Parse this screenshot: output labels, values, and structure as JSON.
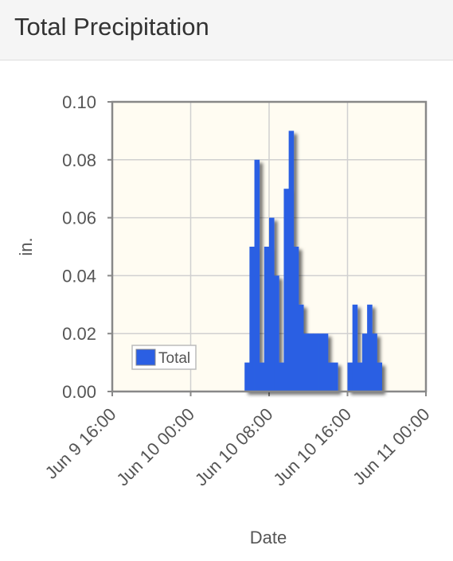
{
  "chart_data": {
    "type": "bar",
    "title": "Total Precipitation",
    "x_label": "Date",
    "y_label": "in.",
    "x": [
      "Jun 10 05:30",
      "Jun 10 06:00",
      "Jun 10 06:30",
      "Jun 10 07:00",
      "Jun 10 07:30",
      "Jun 10 08:00",
      "Jun 10 08:30",
      "Jun 10 09:00",
      "Jun 10 09:30",
      "Jun 10 10:00",
      "Jun 10 10:30",
      "Jun 10 11:00",
      "Jun 10 11:30",
      "Jun 10 12:00",
      "Jun 10 12:30",
      "Jun 10 13:00",
      "Jun 10 13:30",
      "Jun 10 14:00",
      "Jun 10 14:30",
      "Jun 10 16:00",
      "Jun 10 16:30",
      "Jun 10 17:00",
      "Jun 10 17:30",
      "Jun 10 18:00",
      "Jun 10 18:30",
      "Jun 10 19:00"
    ],
    "series": [
      {
        "name": "Total",
        "color": "#2b5fe3",
        "values": [
          0.01,
          0.05,
          0.08,
          0.01,
          0.05,
          0.06,
          0.04,
          0.01,
          0.07,
          0.09,
          0.05,
          0.03,
          0.02,
          0.02,
          0.02,
          0.02,
          0.02,
          0.01,
          0.01,
          0.01,
          0.03,
          0.01,
          0.02,
          0.03,
          0.02,
          0.01
        ]
      }
    ],
    "xlim": [
      "Jun 9 16:00",
      "Jun 11 00:00"
    ],
    "xticks": [
      "Jun 9 16:00",
      "Jun 10 00:00",
      "Jun 10 08:00",
      "Jun 10 16:00",
      "Jun 11 00:00"
    ],
    "ylim": [
      0,
      0.1
    ],
    "yticks": [
      {
        "value": 0,
        "label": "0.00"
      },
      {
        "value": 0.02,
        "label": "0.02"
      },
      {
        "value": 0.04,
        "label": "0.04"
      },
      {
        "value": 0.06,
        "label": "0.06"
      },
      {
        "value": 0.08,
        "label": "0.08"
      },
      {
        "value": 0.1,
        "label": "0.10"
      }
    ],
    "grid": true,
    "legend": "lower left"
  }
}
